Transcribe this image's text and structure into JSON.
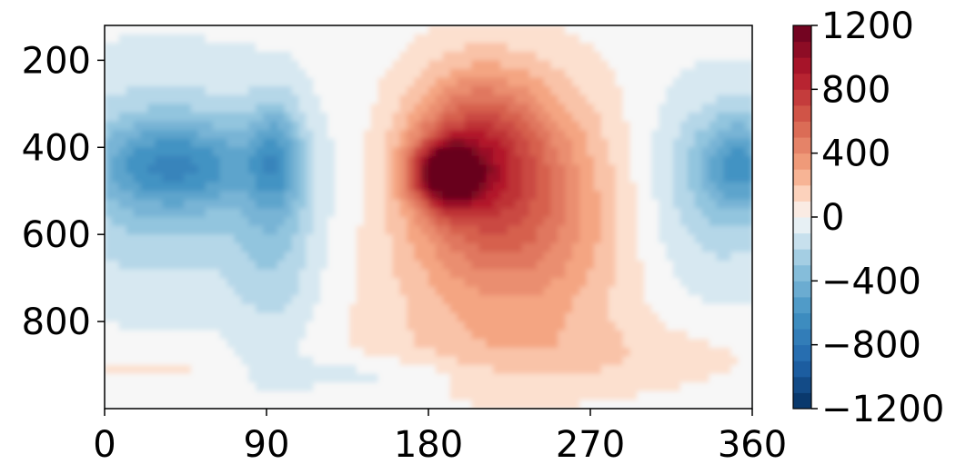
{
  "chart_data": {
    "type": "heatmap",
    "subtype": "filled-contour",
    "title": "",
    "xlabel": "",
    "ylabel": "",
    "xlim": [
      0,
      360
    ],
    "ylim": [
      1000,
      120
    ],
    "x_ticks": [
      0,
      90,
      180,
      270,
      360
    ],
    "x_tick_labels": [
      "0",
      "90",
      "180",
      "270",
      "360"
    ],
    "y_ticks": [
      200,
      400,
      600,
      800
    ],
    "y_tick_labels": [
      "200",
      "400",
      "600",
      "800"
    ],
    "colormap": "RdBu_r",
    "colorbar": {
      "range": [
        -1200,
        1200
      ],
      "levels": 24,
      "ticks": [
        1200,
        800,
        400,
        0,
        -400,
        -800,
        -1200
      ],
      "tick_labels": [
        "1200",
        "800",
        "400",
        "0",
        "−400",
        "−800",
        "−1200"
      ]
    },
    "features": [
      {
        "label": "positive maximum",
        "x": 190,
        "y": 450,
        "value": 1050
      },
      {
        "label": "positive lobe",
        "x": 230,
        "y": 450,
        "value": 600
      },
      {
        "label": "negative region",
        "x": 40,
        "y": 430,
        "value": -450
      },
      {
        "label": "negative region",
        "x": 95,
        "y": 400,
        "value": -350
      },
      {
        "label": "negative region",
        "x": 350,
        "y": 430,
        "value": -450
      }
    ]
  },
  "colors": {
    "neg_dark": "#053061",
    "neg_mid": "#4393c3",
    "neutral": "#f7f7f7",
    "pos_mid": "#f4a582",
    "pos_dark": "#67001f"
  }
}
